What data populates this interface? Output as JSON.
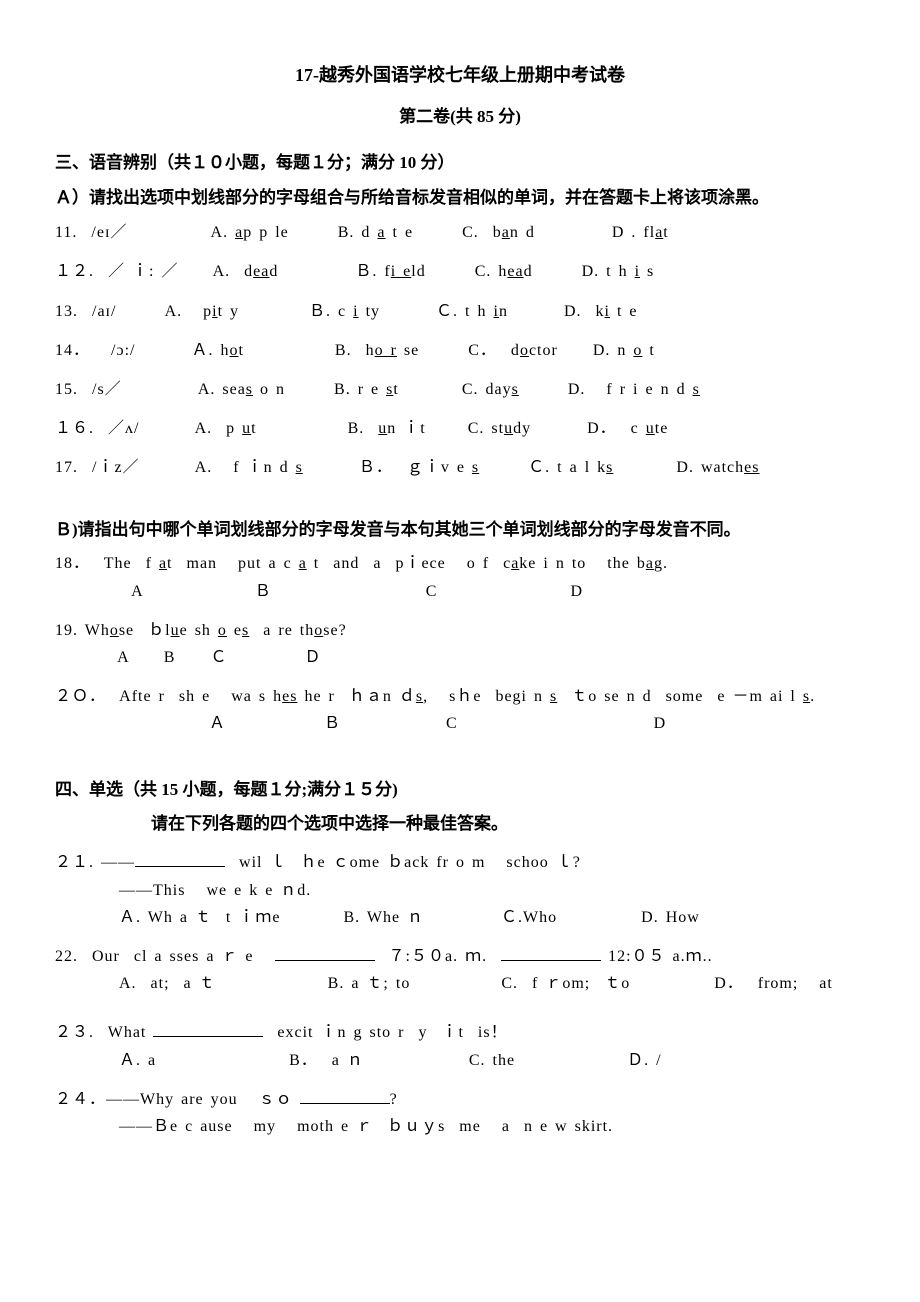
{
  "header": {
    "title_main": "17-越秀外国语学校七年级上册期中考试卷",
    "title_sub": "第二卷(共 85 分)"
  },
  "section3": {
    "heading": "三、语音辨别（共１０小题，每题１分；满分 10 分）",
    "partA_instruction": "Ａ）请找出选项中划线部分的字母组合与所给音标发音相似的单词，并在答题卡上将该项涂黑。",
    "q11": {
      "num": "11.",
      "ipa": "/eɪ／",
      "A_lbl": "A. ",
      "A_u": "a",
      "A_rest": "p p le",
      "B_lbl": "B. d ",
      "B_u": "a",
      "B_rest": " t e",
      "C_lbl": "C.  b",
      "C_u": "a",
      "C_rest": "n d",
      "D_lbl": "D . fl",
      "D_u": "a",
      "D_rest": "t"
    },
    "q12": {
      "num": "１２.",
      "ipa": "／ ｉ: ／",
      "A_lbl": "A.  d",
      "A_u": "ea",
      "A_rest": "d",
      "B_lbl": "Ｂ. f",
      "B_u": "i e",
      "B_rest": "ld",
      "C_lbl": "C. h",
      "C_u": "ea",
      "C_rest": "d",
      "D_lbl": "D. t h ",
      "D_u": "i",
      "D_rest": " s"
    },
    "q13": {
      "num": "13.",
      "ipa": "/aɪ/",
      "A_lbl": "A.   p",
      "A_u": "i",
      "A_rest": "t y",
      "B_lbl": "Ｂ. c ",
      "B_u": "i",
      "B_rest": " ty",
      "C_lbl": "Ｃ. t h ",
      "C_u": "i",
      "C_rest": "n",
      "D_lbl": "D.  k",
      "D_u": "i",
      "D_rest": " t e"
    },
    "q14": {
      "num": "14．",
      "ipa": "/ɔ:/",
      "A_lbl": "Ａ. h",
      "A_u": "o",
      "A_rest": "t",
      "B_lbl": "B.  h",
      "B_u": "o r",
      "B_rest": " se",
      "C_lbl": "C．  d",
      "C_u": "o",
      "C_rest": "ctor",
      "D_lbl": "D. n ",
      "D_u": "o",
      "D_rest": " t"
    },
    "q15": {
      "num": "15.",
      "ipa": "/s／",
      "A_lbl": "A. sea",
      "A_u": "s",
      "A_rest": " o n",
      "B_lbl": "B. r e ",
      "B_u": "s",
      "B_rest": "t",
      "C_lbl": "C. day",
      "C_u": "s",
      "C_rest": "",
      "D_lbl": "D.   f r i e n d ",
      "D_u": "s",
      "D_rest": ""
    },
    "q16": {
      "num": "１６.",
      "ipa": "／ʌ/",
      "A_lbl": "A.  p ",
      "A_u": "u",
      "A_rest": "t",
      "B_lbl": "B.  ",
      "B_u": "u",
      "B_rest": "n ｉt",
      "C_lbl": "C. st",
      "C_u": "u",
      "C_rest": "dy",
      "D_lbl": "D．  c ",
      "D_u": "u",
      "D_rest": "te"
    },
    "q17": {
      "num": "17.",
      "ipa": "/ｉz／",
      "A_lbl": "A.   f ｉn d ",
      "A_u": "s",
      "A_rest": "",
      "B_lbl": "Ｂ．  ｇｉv e ",
      "B_u": "s",
      "B_rest": "",
      "C_lbl": "Ｃ. t a l k",
      "C_u": "s",
      "C_rest": "",
      "D_lbl": "D. watch",
      "D_u": "es",
      "D_rest": ""
    },
    "partB_instruction": "Ｂ)请指出句中哪个单词划线部分的字母发音与本句其她三个单词划线部分的字母发音不同。",
    "q18": {
      "num": "18．",
      "line1_pre": "  The  f ",
      "u1": "a",
      "mid1": "t  man   put a c ",
      "u2": "a",
      "mid2": " t  and  a  pｉece   o f  c",
      "u3": "a",
      "mid3": "ke i n to   the b",
      "u4": "a",
      "mid4": "g.",
      "labels": "           A                Ｂ                      C                   D"
    },
    "q19": {
      "num": "19.",
      "pre": " Wh",
      "u1": "o",
      "m1": "se  ｂl",
      "u2": "u",
      "m2": "e sh ",
      "u3": "o",
      "m3": " e",
      "u4": "s",
      "m4": "  a re th",
      "u5": "o",
      "m5": "se?",
      "labels": "         A     B     Ｃ           Ｄ"
    },
    "q20": {
      "num": "２Ｏ．",
      "pre": "  Afte r  sh e   wa s h",
      "u1": "es",
      "m1": " he r  ｈａn ｄ",
      "u2": "s",
      "m2": ",   sｈe  begi n ",
      "u3": "s",
      "m3": "  ｔo se n d  some  e －m ai l ",
      "u4": "s",
      "m4": ".",
      "labels": "                      Ａ              Ｂ               C                            D"
    }
  },
  "section4": {
    "heading": "四、单选（共 15 小题，每题１分;满分１５分)",
    "instruction": "请在下列各题的四个选项中选择一种最佳答案。",
    "q21": {
      "num": "２１. ——",
      "after_blank": "  wil ｌ  ｈe ｃome ｂack fr o m   schoo ｌ?",
      "line2": "——This   we e k e ｎd.",
      "opts": "Ａ. Wh a ｔ  t ｉｍe         B. Whe ｎ           Ｃ.Who            D. How"
    },
    "q22": {
      "num": "22.",
      "pre": "  Our  cl a sses a ｒ e   ",
      "mid": "  ７:５０a. ｍ.  ",
      "end": " 12:０５ a.ｍ..",
      "opts": "A.  at;  a ｔ                B. a ｔ; to             C.  f ｒom;  ｔo            D．  from;   at"
    },
    "q23": {
      "num": "２３.",
      "pre": "  What ",
      "after": "  excit ｉn g sto r  y  ｉt  is！",
      "opts": "Ａ. a                   B．  a ｎ               C. the                Ｄ. /"
    },
    "q24": {
      "num": "２４．",
      "pre": "——Why are you   ｓｏ ",
      "after": "?",
      "line2": "——Ｂe c ause   my   moth e ｒ  ｂｕｙs  me   a  n e w skirt."
    }
  }
}
